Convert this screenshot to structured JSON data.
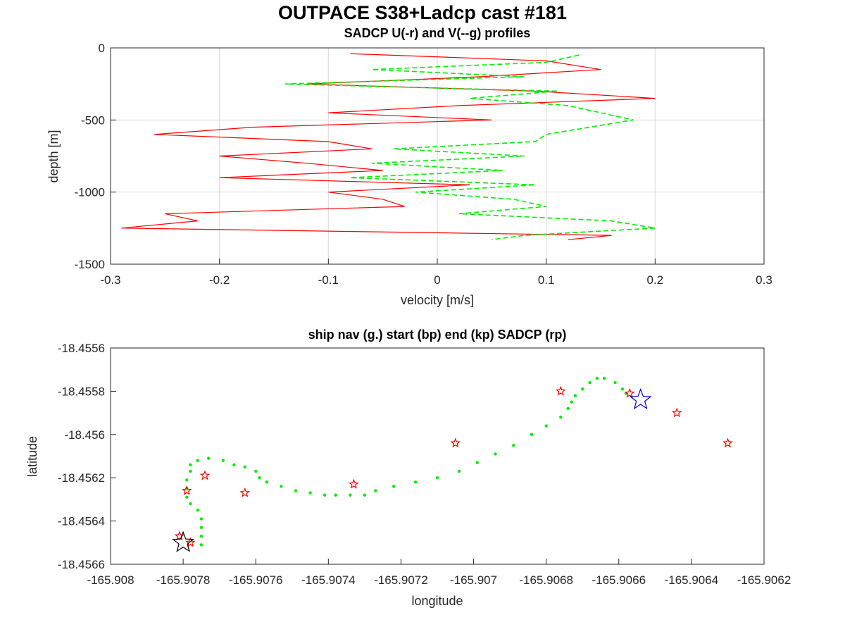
{
  "figure": {
    "suptitle": "OUTPACE S38+Ladcp cast #181"
  },
  "colors": {
    "u_profile": "#ff0000",
    "v_profile": "#00ee00",
    "ship_nav": "#00ee00",
    "sadcp_points": "#ff0000",
    "start_marker": "#0000cc",
    "end_marker": "#000000",
    "grid": "#d9d9d9"
  },
  "chart_data": [
    {
      "type": "line",
      "title": "SADCP U(-r) and V(--g) profiles",
      "xlabel": "velocity [m/s]",
      "ylabel": "depth [m]",
      "xlim": [
        -0.3,
        0.3
      ],
      "ylim": [
        -1500,
        0
      ],
      "xticks": [
        "-0.3",
        "-0.2",
        "-0.1",
        "0",
        "0.1",
        "0.2",
        "0.3"
      ],
      "yticks": [
        "-1500",
        "-1000",
        "-500",
        "0"
      ],
      "grid": true,
      "series": [
        {
          "label": "U",
          "style": "solid red",
          "depth": [
            -40,
            -90,
            -150,
            -200,
            -250,
            -300,
            -350,
            -400,
            -450,
            -500,
            -550,
            -600,
            -650,
            -700,
            -750,
            -800,
            -850,
            -900,
            -950,
            -1000,
            -1050,
            -1100,
            -1150,
            -1200,
            -1250,
            -1300,
            -1330
          ],
          "values": [
            -0.08,
            0.1,
            0.15,
            0.04,
            -0.12,
            0.09,
            0.2,
            0.02,
            -0.1,
            0.05,
            -0.17,
            -0.26,
            -0.1,
            -0.06,
            -0.2,
            -0.12,
            -0.05,
            -0.2,
            0.03,
            -0.1,
            -0.05,
            -0.03,
            -0.25,
            -0.22,
            -0.29,
            0.16,
            0.12
          ]
        },
        {
          "label": "V",
          "style": "dashed green",
          "depth": [
            -50,
            -100,
            -150,
            -200,
            -250,
            -300,
            -350,
            -400,
            -450,
            -500,
            -550,
            -600,
            -650,
            -700,
            -750,
            -800,
            -850,
            -900,
            -950,
            -1000,
            -1050,
            -1100,
            -1150,
            -1200,
            -1250,
            -1300,
            -1330
          ],
          "values": [
            0.13,
            0.1,
            -0.06,
            0.08,
            -0.14,
            0.11,
            0.03,
            0.12,
            0.15,
            0.18,
            0.14,
            0.1,
            0.09,
            -0.04,
            0.08,
            -0.06,
            0.06,
            -0.08,
            0.09,
            -0.02,
            0.07,
            0.1,
            0.02,
            0.16,
            0.2,
            0.08,
            0.05
          ]
        }
      ]
    },
    {
      "type": "scatter",
      "title": "ship nav (g.) start (bp) end (kp) SADCP (rp)",
      "xlabel": "longitude",
      "ylabel": "latitude",
      "xlim": [
        -165.908,
        -165.9062
      ],
      "ylim": [
        -18.4566,
        -18.4556
      ],
      "xticks": [
        "-165.908",
        "-165.9078",
        "-165.9076",
        "-165.9074",
        "-165.9072",
        "-165.907",
        "-165.9068",
        "-165.9066",
        "-165.9064",
        "-165.9062"
      ],
      "yticks": [
        "-18.4566",
        "-18.4564",
        "-18.4562",
        "-18.456",
        "-18.4558",
        "-18.4556"
      ],
      "grid": false,
      "ship_nav": [
        [
          -165.90775,
          -18.45651
        ],
        [
          -165.90775,
          -18.45647
        ],
        [
          -165.90775,
          -18.45643
        ],
        [
          -165.90775,
          -18.45639
        ],
        [
          -165.90776,
          -18.45635
        ],
        [
          -165.90778,
          -18.45632
        ],
        [
          -165.90779,
          -18.45629
        ],
        [
          -165.90779,
          -18.45625
        ],
        [
          -165.90779,
          -18.45621
        ],
        [
          -165.90778,
          -18.45617
        ],
        [
          -165.90778,
          -18.45614
        ],
        [
          -165.90776,
          -18.45612
        ],
        [
          -165.90773,
          -18.45611
        ],
        [
          -165.90769,
          -18.45612
        ],
        [
          -165.90766,
          -18.45614
        ],
        [
          -165.90763,
          -18.45615
        ],
        [
          -165.9076,
          -18.45617
        ],
        [
          -165.90759,
          -18.4562
        ],
        [
          -165.90757,
          -18.45622
        ],
        [
          -165.90753,
          -18.45624
        ],
        [
          -165.90749,
          -18.45626
        ],
        [
          -165.90745,
          -18.45627
        ],
        [
          -165.90741,
          -18.45628
        ],
        [
          -165.90738,
          -18.45628
        ],
        [
          -165.90734,
          -18.45628
        ],
        [
          -165.9073,
          -18.45628
        ],
        [
          -165.90727,
          -18.45626
        ],
        [
          -165.90722,
          -18.45624
        ],
        [
          -165.90716,
          -18.45622
        ],
        [
          -165.9071,
          -18.4562
        ],
        [
          -165.90704,
          -18.45617
        ],
        [
          -165.90699,
          -18.45613
        ],
        [
          -165.90694,
          -18.45609
        ],
        [
          -165.90689,
          -18.45605
        ],
        [
          -165.90684,
          -18.456
        ],
        [
          -165.9068,
          -18.45596
        ],
        [
          -165.90676,
          -18.45592
        ],
        [
          -165.90674,
          -18.45588
        ],
        [
          -165.90673,
          -18.45585
        ],
        [
          -165.90672,
          -18.45582
        ],
        [
          -165.9067,
          -18.45579
        ],
        [
          -165.90668,
          -18.45576
        ],
        [
          -165.90666,
          -18.45574
        ],
        [
          -165.90664,
          -18.45574
        ],
        [
          -165.90661,
          -18.45576
        ],
        [
          -165.90659,
          -18.45579
        ],
        [
          -165.90658,
          -18.45581
        ]
      ],
      "sadcp_points": [
        [
          -165.90781,
          -18.45647
        ],
        [
          -165.90779,
          -18.45626
        ],
        [
          -165.90774,
          -18.45619
        ],
        [
          -165.90763,
          -18.45627
        ],
        [
          -165.90733,
          -18.45623
        ],
        [
          -165.90705,
          -18.45604
        ],
        [
          -165.90676,
          -18.4558
        ],
        [
          -165.90657,
          -18.45581
        ],
        [
          -165.90644,
          -18.4559
        ],
        [
          -165.9063,
          -18.45604
        ],
        [
          -165.90778,
          -18.4565
        ]
      ],
      "start_marker": [
        -165.90654,
        -18.45584
      ],
      "end_marker": [
        -165.9078,
        -18.4565
      ]
    }
  ]
}
